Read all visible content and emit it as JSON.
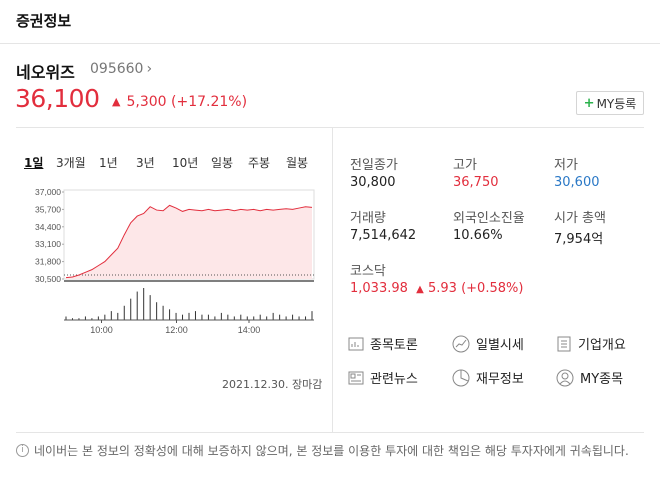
{
  "header": {
    "title": "증권정보"
  },
  "stock": {
    "name": "네오위즈",
    "code": "095660",
    "code_chevron": "›",
    "price": "36,100",
    "change_arrow": "▲",
    "change_amount": "5,300",
    "change_pct": "(+17.21%)",
    "my_button_plus": "+",
    "my_button_label": "MY등록"
  },
  "periods": [
    "1일",
    "3개월",
    "1년",
    "3년",
    "10년",
    "일봉",
    "주봉",
    "월봉"
  ],
  "periods_active": "1일",
  "chart_data": {
    "type": "area",
    "y_ticks": [
      "37,000",
      "35,700",
      "34,400",
      "33,100",
      "31,800",
      "30,500"
    ],
    "ylim": [
      30500,
      37000
    ],
    "x_ticks": [
      "10:00",
      "12:00",
      "14:00"
    ],
    "reference_close": 30800,
    "date_label": "2021.12.30. 장마감",
    "price_series": [
      30600,
      30650,
      30800,
      31000,
      31200,
      31500,
      31800,
      32300,
      32800,
      33800,
      34700,
      35200,
      35400,
      35900,
      35650,
      35600,
      36000,
      35800,
      35550,
      35700,
      35650,
      35600,
      35700,
      35600,
      35650,
      35700,
      35600,
      35700,
      35650,
      35700,
      35600,
      35700,
      35650,
      35700,
      35750,
      35700,
      35800,
      35900,
      35850
    ],
    "volume_series": [
      2,
      1,
      1,
      2,
      1,
      2,
      3,
      5,
      4,
      8,
      12,
      16,
      18,
      14,
      10,
      8,
      6,
      4,
      3,
      4,
      5,
      3,
      3,
      2,
      4,
      3,
      2,
      3,
      2,
      2,
      3,
      2,
      4,
      3,
      2,
      3,
      2,
      2,
      5
    ],
    "colors": {
      "line": "#e22e3d",
      "fill": "#fde7e8",
      "volume": "#333333",
      "reference": "#555555"
    }
  },
  "stats": {
    "prev_close_label": "전일종가",
    "prev_close": "30,800",
    "high_label": "고가",
    "high": "36,750",
    "low_label": "저가",
    "low": "30,600",
    "volume_label": "거래량",
    "volume": "7,514,642",
    "foreign_label": "외국인소진율",
    "foreign": "10.66%",
    "mcap_label": "시가 총액",
    "mcap": "7,954억",
    "kosdaq_label": "코스닥",
    "kosdaq": "1,033.98",
    "kosdaq_change_arrow": "▲",
    "kosdaq_change": "5.93 (+0.58%)"
  },
  "links": {
    "discussion": "종목토론",
    "daily": "일별시세",
    "company": "기업개요",
    "news": "관련뉴스",
    "financial": "재무정보",
    "my_stocks": "MY종목"
  },
  "notice": {
    "icon": "i",
    "text": "네이버는 본 정보의 정확성에 대해 보증하지 않으며, 본 정보를 이용한 투자에 대한 책임은 해당 투자자에게 귀속됩니다."
  }
}
